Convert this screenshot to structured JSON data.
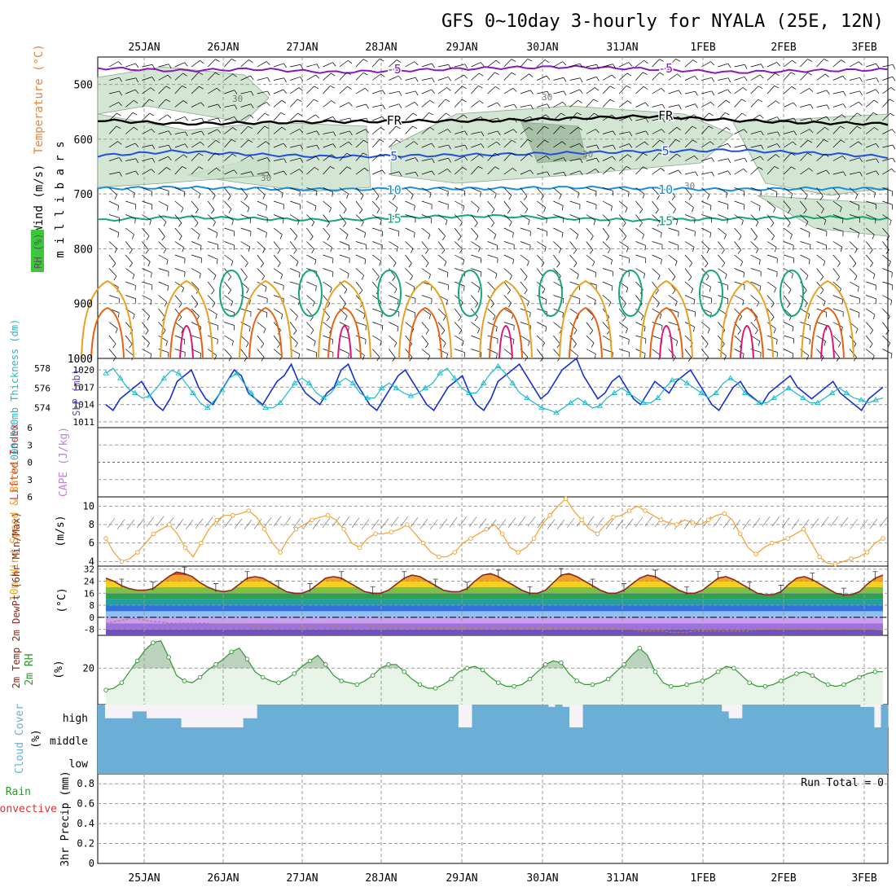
{
  "title": "GFS 0~10day 3-hourly for NYALA (25E, 12N)",
  "dates": [
    "25JAN",
    "26JAN",
    "27JAN",
    "28JAN",
    "29JAN",
    "30JAN",
    "31JAN",
    "1FEB",
    "2FEB",
    "3FEB"
  ],
  "colors": {
    "purple": "#8a1ab8",
    "black": "#000000",
    "blue": "#1f4fe0",
    "lightblue": "#1890e0",
    "teal": "#14a878",
    "orange": "#e8a020",
    "darkorange": "#e86010",
    "magenta": "#e0107a",
    "rhfill": "#c8e0c8",
    "cloud": "#6baed6",
    "mslp": "#1530d0",
    "thick": "#20b8c8",
    "wind10": "#f0a030",
    "temp": "#8b2a1a",
    "rh2m": "#2e9a2e",
    "liline": "#e03030"
  },
  "chart_data": [
    {
      "type": "line",
      "name": "upper-air",
      "ylabel": "m i l l i b a r s",
      "left_labels": [
        "Wind (m/s)",
        "Temperature (°C)",
        "RH (%)"
      ],
      "yticks": [
        500,
        600,
        700,
        800,
        900,
        1000
      ],
      "ylim": [
        450,
        1000
      ],
      "isotherms": [
        {
          "label": "-5",
          "levels": [
            470,
            475,
            472,
            478,
            474,
            470,
            468,
            472,
            478,
            475,
            473
          ]
        },
        {
          "label": "FR",
          "levels": [
            565,
            572,
            570,
            568,
            567,
            566,
            562,
            558,
            565,
            570,
            572
          ]
        },
        {
          "label": "5",
          "levels": [
            630,
            622,
            628,
            632,
            630,
            628,
            625,
            622,
            620,
            625,
            632
          ]
        },
        {
          "label": "10",
          "levels": [
            690,
            688,
            690,
            692,
            690,
            690,
            688,
            690,
            692,
            690,
            690
          ]
        },
        {
          "label": "15",
          "levels": [
            748,
            742,
            745,
            748,
            742,
            740,
            745,
            748,
            745,
            742,
            745
          ]
        }
      ],
      "contour_labels": [
        "30",
        "-5",
        "FR",
        "5",
        "10",
        "15"
      ]
    },
    {
      "type": "line",
      "name": "slp-thickness",
      "ylabel_left": "1000~500mb Thickness (dm)",
      "ylabel_right": "SLP (mb)",
      "left_ticks": [
        574,
        576,
        578
      ],
      "right_ticks": [
        1011,
        1014,
        1017,
        1020
      ],
      "slp_range": [
        1010,
        1022
      ],
      "thickness_range": [
        572,
        579
      ],
      "slp": [
        1014,
        1013,
        1015,
        1016,
        1017,
        1018,
        1016,
        1014,
        1013,
        1015,
        1018,
        1019,
        1020,
        1017,
        1015,
        1014,
        1016,
        1018,
        1020,
        1019,
        1016,
        1015,
        1014,
        1016,
        1018,
        1019,
        1021,
        1018,
        1016,
        1015,
        1014,
        1016,
        1017,
        1020,
        1021,
        1018,
        1016,
        1014,
        1013,
        1015,
        1017,
        1019,
        1020,
        1018,
        1016,
        1014,
        1013,
        1015,
        1017,
        1018,
        1019,
        1016,
        1014,
        1013,
        1015,
        1018,
        1019,
        1020,
        1021,
        1019,
        1017,
        1015,
        1016,
        1018,
        1020,
        1021,
        1022,
        1019,
        1017,
        1015,
        1016,
        1018,
        1019,
        1017,
        1015,
        1014,
        1016,
        1018,
        1017,
        1016,
        1018,
        1019,
        1020,
        1018,
        1016,
        1014,
        1013,
        1015,
        1017,
        1018,
        1016,
        1015,
        1014,
        1016,
        1017,
        1018,
        1019,
        1017,
        1016,
        1015,
        1016,
        1017,
        1018,
        1016,
        1015,
        1014,
        1013,
        1015,
        1016,
        1017
      ],
      "thickness": [
        577.5,
        578,
        577,
        576,
        575.5,
        575,
        575.2,
        576,
        577,
        577.8,
        577.5,
        576.5,
        575.5,
        574.5,
        574,
        574.8,
        575.8,
        577,
        577.5,
        576.5,
        575.5,
        574.5,
        574,
        574,
        574.5,
        575.5,
        576.5,
        577,
        576.5,
        575.5,
        575,
        575.5,
        576.5,
        577,
        576.5,
        575.5,
        575,
        575,
        576,
        576.5,
        576,
        575.5,
        575.2,
        575.5,
        576,
        576.5,
        577.5,
        578,
        577,
        576,
        575.5,
        575.5,
        576.5,
        577.5,
        578.2,
        577.5,
        576.5,
        575.5,
        575,
        574.5,
        574,
        573.8,
        573.5,
        574,
        574.5,
        575,
        574.5,
        574,
        574.2,
        575,
        575.5,
        576,
        575.5,
        575,
        574.5,
        574.5,
        575,
        576,
        576.8,
        577,
        576.5,
        576,
        575.5,
        575,
        575.5,
        576.5,
        577,
        576.5,
        575.5,
        575,
        574.5,
        574.5,
        575,
        575.5,
        576,
        575.5,
        575,
        574.5,
        574.5,
        575,
        575.5,
        576,
        575.5,
        575,
        574.8,
        574.5,
        574.8,
        575
      ]
    },
    {
      "type": "line",
      "name": "stability",
      "ylabel_left": "Lifted Index",
      "ylabel_right": "CAPE (J/kg)",
      "ticks": [
        -6,
        -3,
        0,
        3,
        6
      ],
      "ylim": [
        -6,
        6
      ],
      "lifted_index": 0
    },
    {
      "type": "line",
      "name": "wind10m",
      "ylabel": "10m Wind Speed & Barbs",
      "unit": "(m/s)",
      "yticks": [
        4,
        6,
        8,
        10
      ],
      "ylim": [
        3.5,
        11
      ],
      "values": [
        6.5,
        5,
        4,
        4.3,
        5,
        6,
        7,
        7.5,
        8,
        7,
        5.5,
        4.5,
        6,
        7.5,
        8.5,
        9,
        9,
        9.2,
        9.5,
        8.8,
        7.5,
        6,
        5,
        6.5,
        7.5,
        8,
        8.5,
        8.8,
        9,
        8.5,
        7.5,
        6,
        5.5,
        6.5,
        7,
        7,
        7.2,
        7.5,
        8,
        7,
        6,
        5,
        4.5,
        4.5,
        5,
        6,
        6.5,
        7,
        7.5,
        8,
        7,
        5.5,
        5,
        5.5,
        6.5,
        8,
        9,
        10,
        10.8,
        9.5,
        8.5,
        7.5,
        7,
        8,
        8.8,
        9,
        9.5,
        10,
        9.5,
        9,
        8.5,
        8.2,
        8,
        8.5,
        8.2,
        8,
        8.5,
        9,
        9.2,
        8.5,
        7,
        5.5,
        4.8,
        5.5,
        6,
        6.2,
        6.5,
        7,
        7.5,
        6,
        4.5,
        3.8,
        3.7,
        4,
        4.3,
        4.5,
        5,
        6,
        6.5
      ]
    },
    {
      "type": "area",
      "name": "temp2m",
      "ylabel": "2m Temp 2m DewPt (6hr Min/Max)",
      "unit": "(°C)",
      "yticks": [
        -8,
        0,
        8,
        16,
        24,
        32
      ],
      "ylim": [
        -12,
        34
      ],
      "temp": [
        26,
        24,
        21,
        19,
        18,
        18,
        19,
        23,
        27,
        30,
        29,
        27,
        23,
        20,
        18,
        17,
        18,
        22,
        26,
        27,
        26,
        23,
        20,
        17,
        16,
        16,
        18,
        22,
        26,
        27,
        26,
        23,
        20,
        17,
        16,
        16,
        18,
        22,
        26,
        28,
        27,
        24,
        21,
        18,
        17,
        17,
        19,
        24,
        28,
        29,
        27,
        24,
        21,
        18,
        16,
        16,
        18,
        23,
        28,
        29,
        27,
        24,
        21,
        18,
        16,
        16,
        18,
        22,
        26,
        28,
        27,
        24,
        21,
        18,
        16,
        16,
        18,
        22,
        26,
        27,
        25,
        22,
        19,
        16,
        15,
        15,
        17,
        22,
        26,
        27,
        25,
        22,
        19,
        16,
        15,
        15,
        17,
        22,
        26,
        28
      ],
      "dewpt": [
        -4,
        -3,
        -2,
        -1,
        -1,
        -2,
        -3,
        -3,
        -4,
        -4,
        -4,
        -4,
        -4,
        -4,
        -5,
        -5,
        -5,
        -5,
        -5,
        -6,
        -6,
        -6,
        -5,
        -5,
        -5,
        -6,
        -6,
        -5,
        -5,
        -6,
        -6,
        -6,
        -5,
        -5,
        -6,
        -6,
        -6,
        -6,
        -6,
        -6,
        -7,
        -7,
        -7,
        -7,
        -7,
        -7,
        -7,
        -7,
        -7,
        -6,
        -6,
        -6,
        -7,
        -7,
        -7,
        -7,
        -7,
        -7,
        -7,
        -7,
        -7,
        -7,
        -7,
        -7,
        -7,
        -7,
        -8,
        -8,
        -9,
        -9,
        -9,
        -9,
        -10,
        -10,
        -10,
        -9,
        -9,
        -9,
        -9,
        -9,
        -9,
        -9,
        -9,
        -8,
        -8,
        -8,
        -8,
        -8,
        -8,
        -8,
        -8,
        -8,
        -8,
        -8,
        -8,
        -8,
        -8,
        -8,
        -8,
        -9
      ],
      "zero_line": 0
    },
    {
      "type": "area",
      "name": "rh2m",
      "ylabel": "2m RH",
      "unit": "(%)",
      "yticks": [
        20
      ],
      "ylim": [
        0,
        38
      ],
      "values": [
        8,
        9,
        12,
        18,
        24,
        30,
        34,
        35,
        26,
        16,
        13,
        12,
        15,
        19,
        22,
        25,
        29,
        31,
        25,
        18,
        15,
        13,
        12,
        14,
        17,
        21,
        24,
        27,
        22,
        16,
        13,
        12,
        11,
        13,
        16,
        20,
        22,
        22,
        18,
        14,
        11,
        9,
        9,
        11,
        14,
        18,
        20,
        21,
        19,
        15,
        12,
        10,
        10,
        11,
        14,
        18,
        22,
        24,
        23,
        17,
        13,
        11,
        11,
        12,
        14,
        18,
        22,
        27,
        31,
        27,
        18,
        12,
        10,
        10,
        11,
        12,
        13,
        15,
        18,
        21,
        20,
        16,
        12,
        10,
        10,
        11,
        13,
        15,
        17,
        18,
        16,
        13,
        11,
        10,
        11,
        13,
        15,
        17,
        18,
        18
      ]
    },
    {
      "type": "bar",
      "name": "cloud-cover",
      "ylabel": "Cloud Cover",
      "unit": "(%)",
      "levels": [
        "high",
        "middle",
        "low"
      ],
      "high": [
        100,
        40,
        40,
        40,
        40,
        70,
        70,
        40,
        40,
        40,
        40,
        40,
        0,
        0,
        0,
        0,
        0,
        0,
        0,
        0,
        0,
        40,
        40,
        100,
        100,
        100,
        100,
        100,
        100,
        100,
        100,
        100,
        100,
        100,
        100,
        100,
        100,
        100,
        100,
        100,
        100,
        100,
        100,
        100,
        100,
        100,
        100,
        100,
        100,
        100,
        100,
        100,
        0,
        0,
        100,
        100,
        100,
        100,
        100,
        100,
        100,
        100,
        100,
        100,
        100,
        90,
        100,
        90,
        0,
        0,
        100,
        100,
        100,
        100,
        100,
        100,
        100,
        100,
        100,
        100,
        100,
        100,
        100,
        100,
        100,
        100,
        100,
        100,
        100,
        100,
        70,
        40,
        40,
        100,
        100,
        100,
        100,
        100,
        100,
        100,
        100,
        100,
        100,
        100,
        100,
        100,
        100,
        100,
        100,
        100,
        90,
        90,
        0,
        100
      ],
      "middle": 100,
      "low": 100
    },
    {
      "type": "line",
      "name": "precip",
      "ylabel": "3hr Precip (mm)",
      "left_labels": [
        "Total / Rain",
        "Convective"
      ],
      "yticks": [
        0,
        0.2,
        0.4,
        0.6,
        0.8
      ],
      "ylim": [
        0,
        0.9
      ],
      "annotation": "Run Total = 0"
    }
  ]
}
